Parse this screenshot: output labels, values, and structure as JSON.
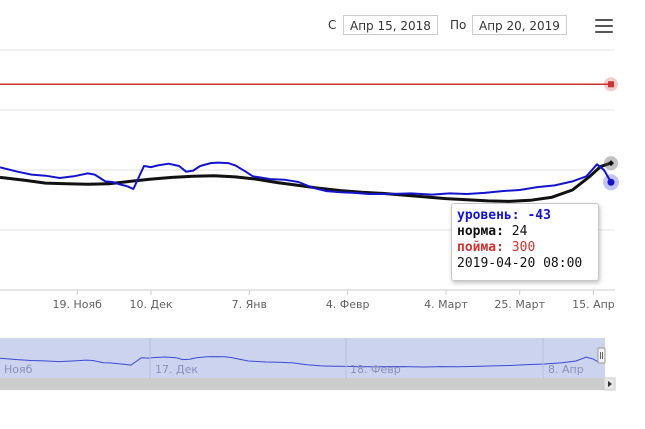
{
  "range_selector": {
    "from_label": "С",
    "from_value": "Апр 15, 2018",
    "to_label": "По",
    "to_value": "Апр 20, 2019"
  },
  "menu": {
    "icon": "hamburger-menu-icon"
  },
  "tooltip": {
    "level_label": "уровень:",
    "level_value": "-43",
    "norm_label": "норма:",
    "norm_value": "24",
    "flood_label": "пойма:",
    "flood_value": "300",
    "time": "2019-04-20 08:00"
  },
  "colors": {
    "level": "#1414cc",
    "norm": "#111111",
    "flood": "#cc3333",
    "navigator_fill": "#ccd3ee",
    "navigator_line": "#3a4ad4"
  },
  "chart_data": {
    "type": "line",
    "y_range": [
      -420,
      420
    ],
    "x_ticks": [
      "19. Нояб",
      "10. Дек",
      "7. Янв",
      "4. Февр",
      "4. Март",
      "25. Март",
      "15. Апр"
    ],
    "navigator_ticks": [
      "Нояб",
      "17. Дек",
      "18. Февр",
      "8. Апр"
    ],
    "series": [
      {
        "name": "уровень",
        "x": [
          "2018-10-28",
          "2018-11-02",
          "2018-11-06",
          "2018-11-10",
          "2018-11-14",
          "2018-11-18",
          "2018-11-22",
          "2018-11-24",
          "2018-11-27",
          "2018-11-29",
          "2018-12-01",
          "2018-12-03",
          "2018-12-05",
          "2018-12-08",
          "2018-12-10",
          "2018-12-12",
          "2018-12-15",
          "2018-12-18",
          "2018-12-20",
          "2018-12-22",
          "2018-12-24",
          "2018-12-27",
          "2018-12-29",
          "2019-01-01",
          "2019-01-03",
          "2019-01-06",
          "2019-01-08",
          "2019-01-10",
          "2019-01-13",
          "2019-01-17",
          "2019-01-21",
          "2019-01-25",
          "2019-01-29",
          "2019-02-02",
          "2019-02-06",
          "2019-02-10",
          "2019-02-16",
          "2019-02-22",
          "2019-02-28",
          "2019-03-05",
          "2019-03-10",
          "2019-03-15",
          "2019-03-20",
          "2019-03-25",
          "2019-03-30",
          "2019-04-04",
          "2019-04-09",
          "2019-04-13",
          "2019-04-16",
          "2019-04-18",
          "2019-04-20"
        ],
        "values": [
          9,
          -6,
          -16,
          -20,
          -28,
          -22,
          -12,
          -16,
          -40,
          -42,
          -50,
          -56,
          -66,
          14,
          10,
          16,
          22,
          14,
          -6,
          -2,
          14,
          24,
          26,
          24,
          16,
          -6,
          -22,
          -26,
          -32,
          -34,
          -42,
          -62,
          -74,
          -78,
          -80,
          -84,
          -84,
          -82,
          -86,
          -82,
          -84,
          -80,
          -74,
          -70,
          -60,
          -54,
          -40,
          -22,
          20,
          0,
          -43
        ]
      },
      {
        "name": "норма",
        "x": [
          "2018-10-28",
          "2018-11-04",
          "2018-11-10",
          "2018-11-16",
          "2018-11-22",
          "2018-11-28",
          "2018-12-04",
          "2018-12-10",
          "2018-12-16",
          "2018-12-22",
          "2018-12-28",
          "2019-01-03",
          "2019-01-09",
          "2019-01-15",
          "2019-01-21",
          "2019-01-27",
          "2019-02-02",
          "2019-02-08",
          "2019-02-14",
          "2019-02-20",
          "2019-02-26",
          "2019-03-04",
          "2019-03-10",
          "2019-03-16",
          "2019-03-22",
          "2019-03-28",
          "2019-04-03",
          "2019-04-09",
          "2019-04-14",
          "2019-04-17",
          "2019-04-20"
        ],
        "values": [
          -26,
          -36,
          -46,
          -48,
          -50,
          -48,
          -40,
          -32,
          -26,
          -22,
          -20,
          -24,
          -32,
          -44,
          -54,
          -64,
          -72,
          -78,
          -82,
          -88,
          -94,
          -100,
          -104,
          -108,
          -110,
          -106,
          -96,
          -70,
          -22,
          12,
          24
        ]
      },
      {
        "name": "пойма",
        "x": [
          "2018-10-28",
          "2019-04-20"
        ],
        "values": [
          300,
          300
        ]
      }
    ],
    "legend": "none",
    "grid": true
  }
}
